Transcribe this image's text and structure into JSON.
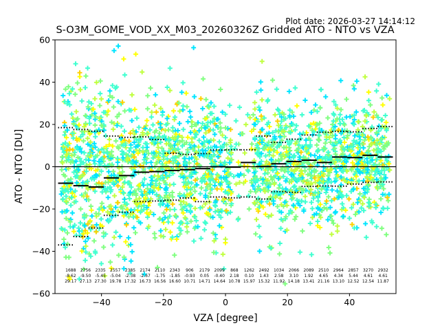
{
  "plot_date": "Plot date: 2026-03-27 14:14:12",
  "chart_data": {
    "type": "scatter",
    "title": "S-O3M_GOME_VOD_XX_M03_20260326Z Gridded ATO - NTO vs VZA",
    "xlabel": "VZA [degree]",
    "ylabel": "ATO - NTO [DU]",
    "xlim": [
      -55,
      55
    ],
    "ylim": [
      -60,
      60
    ],
    "xticks": [
      -40,
      -20,
      0,
      20,
      40
    ],
    "yticks": [
      -60,
      -40,
      -20,
      0,
      20,
      40,
      60
    ],
    "grid": false,
    "marker": "+",
    "colormap": [
      "#0000ff",
      "#00a0ff",
      "#00e5ff",
      "#40ffd0",
      "#80ff80",
      "#c0ff40",
      "#ffff00",
      "#ffd000"
    ],
    "zero_line": 0,
    "bins": {
      "vza": [
        -52,
        -48,
        -44,
        -40,
        -36,
        -32,
        -28,
        -24,
        -20,
        -16,
        -12,
        -8,
        -4,
        0,
        4,
        8,
        12,
        16,
        20,
        24,
        28,
        32,
        36,
        40,
        44,
        48,
        52
      ],
      "count": [
        1688,
        2756,
        2335,
        2557,
        2385,
        2174,
        2110,
        2343,
        906,
        2179,
        2099,
        868,
        1262,
        2492,
        1034,
        2066,
        2089,
        2510,
        2964,
        2857,
        3270,
        2932
      ],
      "mean": [
        -8.62,
        -9.5,
        -5.45,
        -5.04,
        -2.38,
        -2.67,
        -1.75,
        -1.85,
        -0.93,
        0.05,
        -0.4,
        2.18,
        0.1,
        1.43,
        2.58,
        3.1,
        1.92,
        4.65,
        4.34,
        5.44,
        4.61,
        4.61
      ],
      "std": [
        29.17,
        27.13,
        27.3,
        19.78,
        17.32,
        16.73,
        16.56,
        16.6,
        10.71,
        14.71,
        14.64,
        10.78,
        15.97,
        15.32,
        11.92,
        14.18,
        13.41,
        21.16,
        13.1,
        12.52,
        12.54,
        11.87
      ],
      "mean_line": [
        -7.8,
        -9.0,
        -9.6,
        -5.3,
        -4.2,
        -2.6,
        -2.3,
        -1.8,
        -1.4,
        -0.9,
        0.0,
        -0.2,
        2.0,
        0.1,
        1.4,
        2.5,
        3.1,
        2.0,
        4.6,
        4.3,
        5.4,
        4.6
      ],
      "upper_line": [
        18.5,
        17.6,
        16.8,
        14.5,
        13.9,
        14.1,
        12.9,
        6.4,
        5.8,
        6.2,
        7.9,
        8.0,
        8.0,
        14.5,
        11.5,
        13.0,
        15.0,
        16.3,
        16.7,
        16.5,
        18.1,
        19.0
      ],
      "lower_line": [
        -37,
        -33,
        -29,
        -23,
        -21.5,
        -16.5,
        -16.2,
        -15.8,
        -14.8,
        -16.5,
        -14.3,
        -14.7,
        -14.3,
        -15.3,
        -11.8,
        -12.1,
        -9.3,
        -9.1,
        -9.2,
        -8.2,
        -7.4,
        -7.2
      ]
    },
    "stat_labels": {
      "count": [
        "1688",
        "2756",
        "2335",
        "2557",
        "2385",
        "2174",
        "2110",
        "2343",
        "906",
        "2179",
        "2099",
        "868",
        "1262",
        "2492",
        "1034",
        "2066",
        "2089",
        "2510",
        "2964",
        "2857",
        "3270",
        "2932"
      ],
      "mean": [
        "-8.62",
        "-9.50",
        "-5.45",
        "-5.04",
        "-2.38",
        "-2.67",
        "-1.75",
        "-1.85",
        "-0.93",
        "0.05",
        "-0.40",
        "2.18",
        "0.10",
        "1.43",
        "2.58",
        "3.10",
        "1.92",
        "4.65",
        "4.34",
        "5.44",
        "4.61",
        "4.61"
      ],
      "std": [
        "29.17",
        "27.13",
        "27.30",
        "19.78",
        "17.32",
        "16.73",
        "16.56",
        "16.60",
        "10.71",
        "14.71",
        "14.64",
        "10.78",
        "15.97",
        "15.32",
        "11.92",
        "14.18",
        "13.41",
        "21.16",
        "13.10",
        "12.52",
        "12.54",
        "11.87"
      ]
    }
  }
}
